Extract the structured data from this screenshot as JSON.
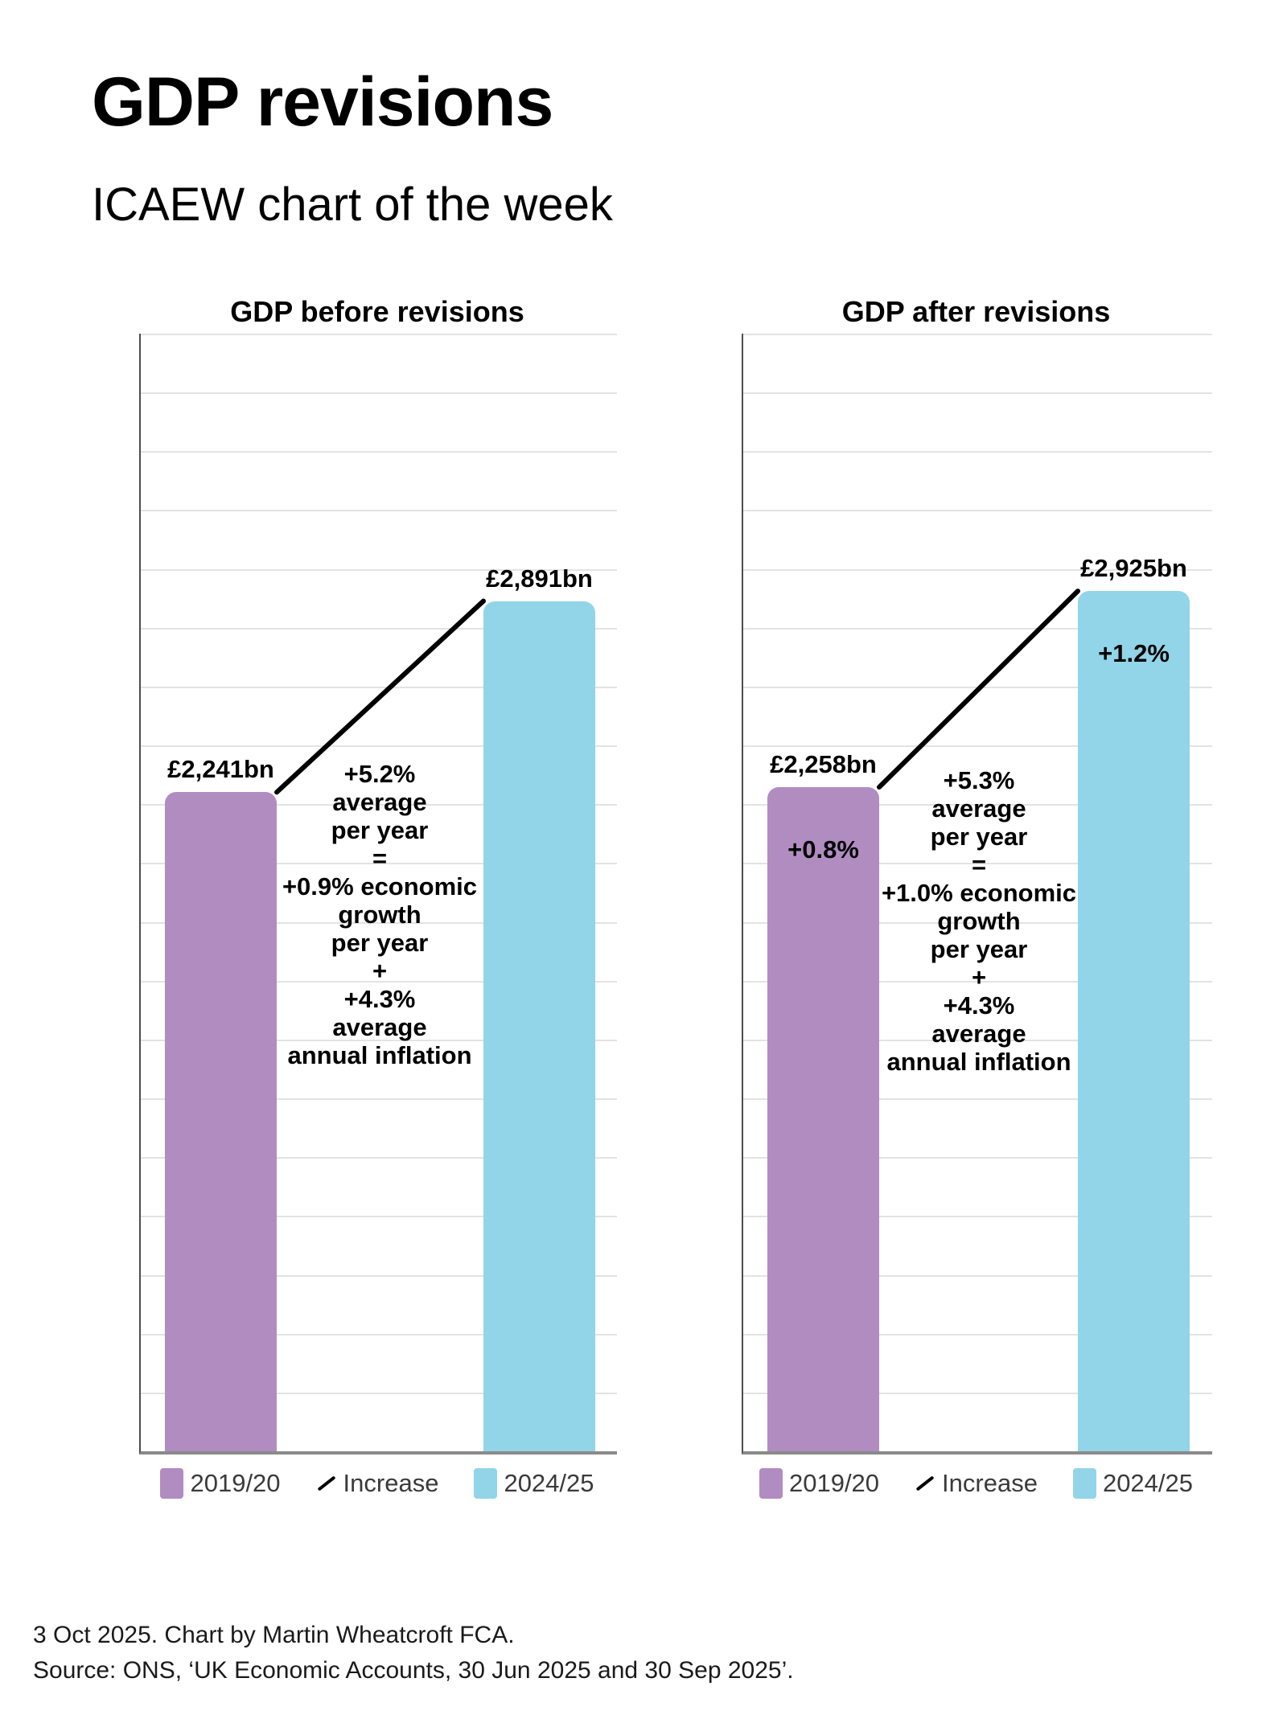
{
  "page": {
    "title": "GDP revisions",
    "subtitle": "ICAEW chart of the week",
    "footer_line1": "3 Oct 2025. Chart by Martin Wheatcroft FCA.",
    "footer_line2": "Source: ONS, ‘UK Economic Accounts, 30 Jun 2025 and 30 Sep 2025’."
  },
  "colors": {
    "bar_2019_20": "#b18cc1",
    "bar_2024_25": "#92d5e8",
    "increase_line": "#000000",
    "gridline": "#e3e3e3",
    "axis_left": "#4d4d4d",
    "axis_bottom": "#8a8a8a",
    "legend_text": "#3a3a3a"
  },
  "chart_data": [
    {
      "type": "bar",
      "title": "GDP before revisions",
      "categories": [
        "2019/20",
        "2024/25"
      ],
      "values": [
        2241,
        2891
      ],
      "unit": "£bn",
      "value_labels": [
        "£2,241bn",
        "£2,891bn"
      ],
      "in_bar_labels": [
        "",
        ""
      ],
      "annotation_lines": [
        "+5.2%",
        "average",
        "per year",
        "=",
        "+0.9% economic",
        "growth",
        "per year",
        "+",
        "+4.3%",
        "average",
        "annual inflation"
      ],
      "legend": [
        "2019/20",
        "Increase",
        "2024/25"
      ],
      "ylim": [
        0,
        3800
      ],
      "gridline_step": 200,
      "grid": true,
      "increase_connector": true
    },
    {
      "type": "bar",
      "title": "GDP after revisions",
      "categories": [
        "2019/20",
        "2024/25"
      ],
      "values": [
        2258,
        2925
      ],
      "unit": "£bn",
      "value_labels": [
        "£2,258bn",
        "£2,925bn"
      ],
      "in_bar_labels": [
        "+0.8%",
        "+1.2%"
      ],
      "annotation_lines": [
        "+5.3%",
        "average",
        "per year",
        "=",
        "+1.0% economic",
        "growth",
        "per year",
        "+",
        "+4.3%",
        "average",
        "annual inflation"
      ],
      "legend": [
        "2019/20",
        "Increase",
        "2024/25"
      ],
      "ylim": [
        0,
        3800
      ],
      "gridline_step": 200,
      "grid": true,
      "increase_connector": true
    }
  ]
}
